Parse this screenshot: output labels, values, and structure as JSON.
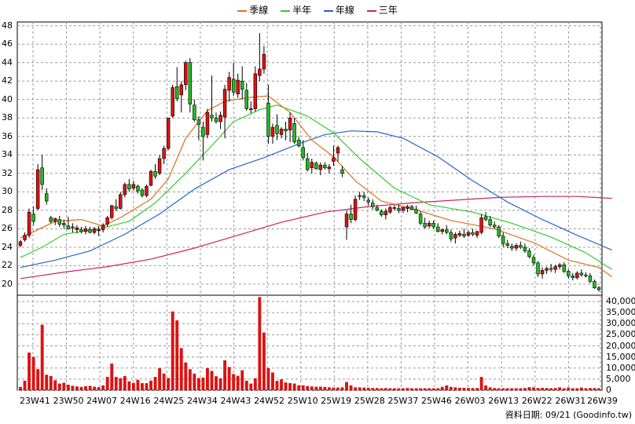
{
  "chart_data": {
    "type": "candlestick",
    "legend": [
      {
        "name": "季線",
        "color": "#e07020"
      },
      {
        "name": "半年",
        "color": "#33cc33"
      },
      {
        "name": "年線",
        "color": "#2266cc"
      },
      {
        "name": "三年",
        "color": "#cc2266"
      }
    ],
    "price_axis": {
      "ticks": [
        20,
        22,
        24,
        26,
        28,
        30,
        32,
        34,
        36,
        38,
        40,
        42,
        44,
        46,
        48
      ],
      "ylim": [
        18.8,
        48.4
      ]
    },
    "volume_axis": {
      "ticks": [
        "0",
        "5,000",
        "10,000",
        "15,000",
        "20,000",
        "25,000",
        "30,000",
        "35,000",
        "40,000"
      ],
      "ylim": [
        0,
        40000
      ]
    },
    "x_ticks": [
      "23W41",
      "23W50",
      "24W07",
      "24W16",
      "24W25",
      "24W34",
      "24W43",
      "24W52",
      "25W10",
      "25W19",
      "25W28",
      "25W37",
      "25W46",
      "26W03",
      "26W13",
      "26W22",
      "26W31",
      "26W39"
    ],
    "candles": [
      [
        24.2,
        24.8,
        24.0,
        24.6,
        1500
      ],
      [
        24.8,
        25.6,
        24.6,
        25.3,
        4300
      ],
      [
        25.3,
        28.2,
        25.0,
        27.8,
        17000
      ],
      [
        27.6,
        28.4,
        26.4,
        26.8,
        15000
      ],
      [
        28.2,
        33.0,
        28.0,
        32.4,
        9500
      ],
      [
        32.6,
        34.0,
        30.2,
        30.8,
        29500
      ],
      [
        29.8,
        30.4,
        28.6,
        29.0,
        7000
      ],
      [
        27.2,
        27.4,
        26.6,
        26.8,
        6400
      ],
      [
        26.8,
        27.2,
        26.4,
        27.1,
        4500
      ],
      [
        27.0,
        27.4,
        26.2,
        26.5,
        3000
      ],
      [
        26.6,
        27.0,
        26.0,
        26.4,
        3400
      ],
      [
        26.3,
        27.3,
        25.9,
        26.0,
        2500
      ],
      [
        26.1,
        26.6,
        25.6,
        26.2,
        2000
      ],
      [
        25.9,
        26.4,
        25.5,
        26.1,
        1700
      ],
      [
        25.9,
        26.2,
        25.5,
        25.7,
        1500
      ],
      [
        25.7,
        26.3,
        25.4,
        26.0,
        1800
      ],
      [
        25.9,
        26.2,
        25.5,
        25.6,
        2000
      ],
      [
        25.6,
        26.2,
        25.4,
        26.0,
        1600
      ],
      [
        25.8,
        26.3,
        25.2,
        25.9,
        1400
      ],
      [
        25.9,
        26.6,
        25.6,
        26.4,
        2200
      ],
      [
        26.5,
        27.4,
        26.2,
        27.2,
        6000
      ],
      [
        27.2,
        28.6,
        27.0,
        28.5,
        12000
      ],
      [
        28.4,
        29.2,
        27.9,
        28.2,
        6000
      ],
      [
        28.2,
        30.0,
        28.1,
        29.7,
        5400
      ],
      [
        29.7,
        31.0,
        29.4,
        30.8,
        6400
      ],
      [
        30.8,
        31.4,
        30.0,
        30.3,
        4000
      ],
      [
        30.4,
        31.2,
        30.1,
        30.8,
        3300
      ],
      [
        30.6,
        30.8,
        29.8,
        30.1,
        4700
      ],
      [
        30.2,
        30.4,
        29.4,
        29.6,
        3200
      ],
      [
        29.6,
        30.8,
        29.4,
        30.6,
        3200
      ],
      [
        30.7,
        32.4,
        30.6,
        32.2,
        4300
      ],
      [
        32.2,
        33.0,
        31.4,
        31.7,
        6000
      ],
      [
        32.0,
        34.0,
        31.8,
        33.6,
        10000
      ],
      [
        33.6,
        35.0,
        33.0,
        34.7,
        7500
      ],
      [
        34.7,
        38.0,
        34.5,
        38.0,
        5500
      ],
      [
        38.2,
        41.6,
        38.0,
        41.3,
        35500
      ],
      [
        41.4,
        43.5,
        39.8,
        40.1,
        31500
      ],
      [
        40.5,
        42.0,
        38.6,
        41.6,
        19000
      ],
      [
        41.6,
        44.2,
        41.0,
        44.0,
        12500
      ],
      [
        44.0,
        44.5,
        38.6,
        39.5,
        9500
      ],
      [
        39.4,
        40.0,
        37.6,
        37.8,
        7500
      ],
      [
        37.8,
        38.2,
        35.6,
        37.3,
        5500
      ],
      [
        37.0,
        37.6,
        33.4,
        36.0,
        5700
      ],
      [
        36.2,
        39.0,
        35.8,
        38.6,
        10000
      ],
      [
        38.3,
        42.6,
        37.6,
        38.0,
        8700
      ],
      [
        38.0,
        38.6,
        37.4,
        37.6,
        6300
      ],
      [
        37.6,
        38.7,
        36.8,
        38.3,
        5400
      ],
      [
        38.1,
        41.6,
        35.8,
        41.1,
        13500
      ],
      [
        41.0,
        43.0,
        39.8,
        42.4,
        10500
      ],
      [
        42.2,
        44.0,
        40.4,
        40.8,
        7300
      ],
      [
        40.6,
        42.8,
        40.2,
        42.1,
        6500
      ],
      [
        42.0,
        43.6,
        40.0,
        41.1,
        9000
      ],
      [
        41.0,
        41.8,
        38.8,
        39.0,
        4300
      ],
      [
        38.9,
        39.8,
        38.5,
        39.0,
        3000
      ],
      [
        39.0,
        43.6,
        38.7,
        42.8,
        5400
      ],
      [
        42.6,
        47.2,
        42.0,
        43.3,
        42000
      ],
      [
        43.3,
        45.8,
        42.8,
        44.9,
        26000
      ],
      [
        39.6,
        41.6,
        35.2,
        36.0,
        10000
      ],
      [
        36.0,
        37.4,
        35.2,
        37.0,
        8000
      ],
      [
        37.2,
        38.4,
        35.6,
        36.3,
        4200
      ],
      [
        36.2,
        37.0,
        35.8,
        36.8,
        4900
      ],
      [
        36.8,
        37.6,
        35.6,
        36.6,
        3500
      ],
      [
        36.7,
        38.6,
        35.4,
        38.0,
        3200
      ],
      [
        37.4,
        38.0,
        35.2,
        35.4,
        3000
      ],
      [
        35.6,
        36.0,
        34.8,
        35.0,
        2200
      ],
      [
        34.8,
        35.6,
        33.4,
        33.7,
        2200
      ],
      [
        33.6,
        34.2,
        32.2,
        32.4,
        1900
      ],
      [
        32.6,
        33.6,
        32.0,
        33.2,
        1700
      ],
      [
        33.1,
        33.3,
        32.4,
        32.5,
        1600
      ],
      [
        32.4,
        33.2,
        31.8,
        32.9,
        1600
      ],
      [
        32.9,
        33.2,
        32.4,
        32.6,
        1500
      ],
      [
        32.5,
        33.0,
        32.0,
        32.7,
        1300
      ],
      [
        33.3,
        35.0,
        32.8,
        33.7,
        1200
      ],
      [
        34.2,
        35.0,
        33.3,
        34.8,
        1200
      ],
      [
        32.4,
        32.8,
        31.6,
        32.0,
        1300
      ],
      [
        26.2,
        28.0,
        24.8,
        27.6,
        3700
      ],
      [
        27.6,
        28.6,
        26.6,
        27.0,
        2200
      ],
      [
        27.0,
        29.6,
        26.8,
        29.2,
        1300
      ],
      [
        29.5,
        30.0,
        29.1,
        29.6,
        1300
      ],
      [
        29.6,
        30.0,
        29.0,
        29.4,
        1200
      ],
      [
        29.1,
        29.4,
        28.5,
        28.9,
        1100
      ],
      [
        28.8,
        29.2,
        28.1,
        28.4,
        1000
      ],
      [
        28.3,
        28.6,
        27.9,
        28.0,
        1000
      ],
      [
        27.9,
        28.1,
        27.3,
        27.5,
        900
      ],
      [
        27.5,
        28.2,
        27.0,
        27.9,
        1000
      ],
      [
        27.8,
        28.5,
        27.6,
        28.3,
        900
      ],
      [
        28.3,
        28.6,
        28.0,
        28.2,
        900
      ],
      [
        28.2,
        28.6,
        27.7,
        28.0,
        900
      ],
      [
        28.0,
        28.4,
        27.7,
        28.3,
        900
      ],
      [
        28.2,
        28.6,
        27.8,
        28.4,
        1000
      ],
      [
        28.4,
        28.6,
        28.0,
        28.1,
        900
      ],
      [
        28.1,
        28.5,
        27.6,
        27.7,
        900
      ],
      [
        27.6,
        27.9,
        26.4,
        26.6,
        900
      ],
      [
        26.6,
        27.2,
        26.0,
        26.2,
        900
      ],
      [
        26.3,
        26.9,
        26.1,
        26.6,
        900
      ],
      [
        26.6,
        26.9,
        26.0,
        26.2,
        900
      ],
      [
        26.2,
        26.6,
        25.6,
        25.7,
        900
      ],
      [
        25.7,
        26.0,
        25.4,
        25.9,
        1500
      ],
      [
        25.9,
        26.4,
        25.4,
        25.6,
        2200
      ],
      [
        25.6,
        25.9,
        24.6,
        24.9,
        1500
      ],
      [
        25.0,
        25.6,
        24.4,
        25.4,
        1300
      ],
      [
        25.3,
        25.8,
        25.1,
        25.5,
        1100
      ],
      [
        25.4,
        26.0,
        25.0,
        25.2,
        1100
      ],
      [
        25.3,
        25.8,
        25.1,
        25.6,
        1000
      ],
      [
        25.6,
        26.0,
        25.2,
        25.4,
        1000
      ],
      [
        25.3,
        25.8,
        25.0,
        25.7,
        1000
      ],
      [
        25.6,
        27.6,
        25.4,
        27.2,
        6000
      ],
      [
        27.3,
        27.8,
        26.8,
        27.0,
        2200
      ],
      [
        27.0,
        27.4,
        26.2,
        26.4,
        1300
      ],
      [
        26.4,
        26.8,
        26.0,
        26.2,
        1000
      ],
      [
        26.2,
        26.4,
        25.0,
        25.2,
        900
      ],
      [
        25.2,
        25.6,
        24.0,
        24.4,
        900
      ],
      [
        24.4,
        24.8,
        23.9,
        24.2,
        900
      ],
      [
        24.1,
        24.4,
        23.6,
        23.9,
        900
      ],
      [
        23.9,
        24.4,
        23.6,
        24.2,
        900
      ],
      [
        24.2,
        24.6,
        23.8,
        24.0,
        900
      ],
      [
        24.0,
        24.4,
        23.4,
        23.6,
        1000
      ],
      [
        23.6,
        23.9,
        22.8,
        23.0,
        1400
      ],
      [
        22.9,
        23.2,
        22.0,
        22.3,
        1300
      ],
      [
        22.3,
        22.5,
        20.8,
        21.1,
        1000
      ],
      [
        21.1,
        21.8,
        20.6,
        21.5,
        1100
      ],
      [
        21.5,
        21.9,
        21.1,
        21.7,
        1000
      ],
      [
        21.7,
        22.2,
        21.3,
        21.6,
        900
      ],
      [
        21.6,
        22.1,
        21.2,
        21.9,
        1000
      ],
      [
        21.9,
        22.3,
        21.6,
        22.1,
        1300
      ],
      [
        22.1,
        22.4,
        21.2,
        21.4,
        900
      ],
      [
        21.4,
        21.6,
        20.6,
        20.9,
        1200
      ],
      [
        20.9,
        21.2,
        20.4,
        20.7,
        900
      ],
      [
        20.7,
        21.4,
        20.5,
        21.2,
        900
      ],
      [
        21.2,
        21.6,
        20.8,
        21.0,
        1200
      ],
      [
        21.0,
        21.3,
        20.7,
        20.9,
        900
      ],
      [
        20.9,
        21.2,
        20.1,
        20.3,
        1000
      ],
      [
        20.3,
        20.5,
        19.5,
        19.6,
        1000
      ],
      [
        19.6,
        19.8,
        19.2,
        19.4,
        900
      ]
    ],
    "ma_quarter": [
      [
        0,
        25.0
      ],
      [
        8,
        26.8
      ],
      [
        14,
        27.0
      ],
      [
        19,
        26.3
      ],
      [
        23,
        27.2
      ],
      [
        30,
        29.2
      ],
      [
        34,
        31.4
      ],
      [
        38,
        35.8
      ],
      [
        43,
        38.8
      ],
      [
        47,
        39.8
      ],
      [
        52,
        40.2
      ],
      [
        57,
        40.4
      ],
      [
        62,
        38.6
      ],
      [
        67,
        35.6
      ],
      [
        72,
        33.8
      ],
      [
        77,
        31.2
      ],
      [
        83,
        29.0
      ],
      [
        90,
        28.2
      ],
      [
        99,
        26.9
      ],
      [
        109,
        26.0
      ],
      [
        118,
        24.5
      ],
      [
        126,
        22.6
      ],
      [
        133,
        21.8
      ],
      [
        136,
        20.8
      ]
    ],
    "ma_half": [
      [
        0,
        22.9
      ],
      [
        5,
        24.0
      ],
      [
        10,
        25.4
      ],
      [
        18,
        26.0
      ],
      [
        25,
        26.8
      ],
      [
        31,
        28.8
      ],
      [
        38,
        32.0
      ],
      [
        44,
        35.0
      ],
      [
        49,
        37.6
      ],
      [
        55,
        38.9
      ],
      [
        59,
        39.4
      ],
      [
        66,
        38.2
      ],
      [
        72,
        36.4
      ],
      [
        78,
        33.6
      ],
      [
        86,
        30.4
      ],
      [
        94,
        28.6
      ],
      [
        104,
        27.8
      ],
      [
        113,
        26.6
      ],
      [
        122,
        25.1
      ],
      [
        130,
        23.4
      ],
      [
        136,
        21.6
      ]
    ],
    "ma_year": [
      [
        0,
        21.8
      ],
      [
        8,
        22.6
      ],
      [
        16,
        23.6
      ],
      [
        24,
        25.4
      ],
      [
        32,
        27.6
      ],
      [
        40,
        30.3
      ],
      [
        48,
        32.4
      ],
      [
        56,
        33.7
      ],
      [
        64,
        35.2
      ],
      [
        70,
        36.2
      ],
      [
        76,
        36.6
      ],
      [
        82,
        36.5
      ],
      [
        88,
        35.8
      ],
      [
        96,
        33.8
      ],
      [
        104,
        31.2
      ],
      [
        112,
        28.9
      ],
      [
        120,
        27.0
      ],
      [
        128,
        25.3
      ],
      [
        136,
        23.7
      ]
    ],
    "ma_3yr": [
      [
        0,
        20.6
      ],
      [
        10,
        21.3
      ],
      [
        20,
        21.9
      ],
      [
        30,
        22.7
      ],
      [
        40,
        23.9
      ],
      [
        50,
        25.3
      ],
      [
        60,
        26.7
      ],
      [
        70,
        27.8
      ],
      [
        80,
        28.4
      ],
      [
        90,
        28.8
      ],
      [
        100,
        29.1
      ],
      [
        110,
        29.4
      ],
      [
        120,
        29.5
      ],
      [
        128,
        29.5
      ],
      [
        136,
        29.3
      ]
    ]
  },
  "footer": {
    "text": "資料日期: 09/21  (Goodinfo.tw)"
  }
}
